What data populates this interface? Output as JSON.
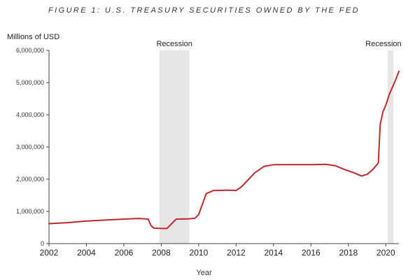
{
  "chart_data": {
    "type": "line",
    "title": "FIGURE 1: U.S. TREASURY SECURITIES OWNED BY THE FED",
    "ylabel": "Millions of USD",
    "xlabel": "Year",
    "xlim": [
      2002,
      2020.7
    ],
    "ylim": [
      0,
      6000000
    ],
    "x_ticks": [
      "2002",
      "2004",
      "2006",
      "2008",
      "2010",
      "2012",
      "2014",
      "2016",
      "2018",
      "2020"
    ],
    "y_ticks": [
      "0",
      "1,000,000",
      "2,000,000",
      "3,000,000",
      "4,000,000",
      "5,000,000",
      "6,000,000"
    ],
    "grid": false,
    "shaded_regions": [
      {
        "label": "Recession",
        "start": 2007.9,
        "end": 2009.5
      },
      {
        "label": "Recession",
        "start": 2020.1,
        "end": 2020.4
      }
    ],
    "line_color": "#c0282d",
    "shade_color": "#e6e6e6",
    "series": [
      {
        "x": [
          2002.0,
          2003.0,
          2004.0,
          2005.0,
          2006.0,
          2006.8,
          2007.3,
          2007.45,
          2007.6,
          2008.0,
          2008.3,
          2008.8,
          2009.5,
          2009.8,
          2010.0,
          2010.4,
          2010.8,
          2011.0,
          2011.5,
          2012.0,
          2012.3,
          2013.0,
          2013.5,
          2014.0,
          2015.0,
          2016.0,
          2016.8,
          2017.3,
          2017.8,
          2018.3,
          2018.7,
          2019.0,
          2019.3,
          2019.6,
          2019.7,
          2019.85,
          2020.0,
          2020.2,
          2020.5,
          2020.7
        ],
        "y": [
          620000,
          650000,
          700000,
          730000,
          760000,
          780000,
          760000,
          560000,
          480000,
          470000,
          470000,
          760000,
          770000,
          790000,
          900000,
          1550000,
          1650000,
          1650000,
          1660000,
          1650000,
          1770000,
          2200000,
          2400000,
          2450000,
          2450000,
          2450000,
          2460000,
          2420000,
          2300000,
          2200000,
          2100000,
          2150000,
          2300000,
          2500000,
          3700000,
          4100000,
          4300000,
          4650000,
          5050000,
          5350000
        ]
      }
    ]
  }
}
